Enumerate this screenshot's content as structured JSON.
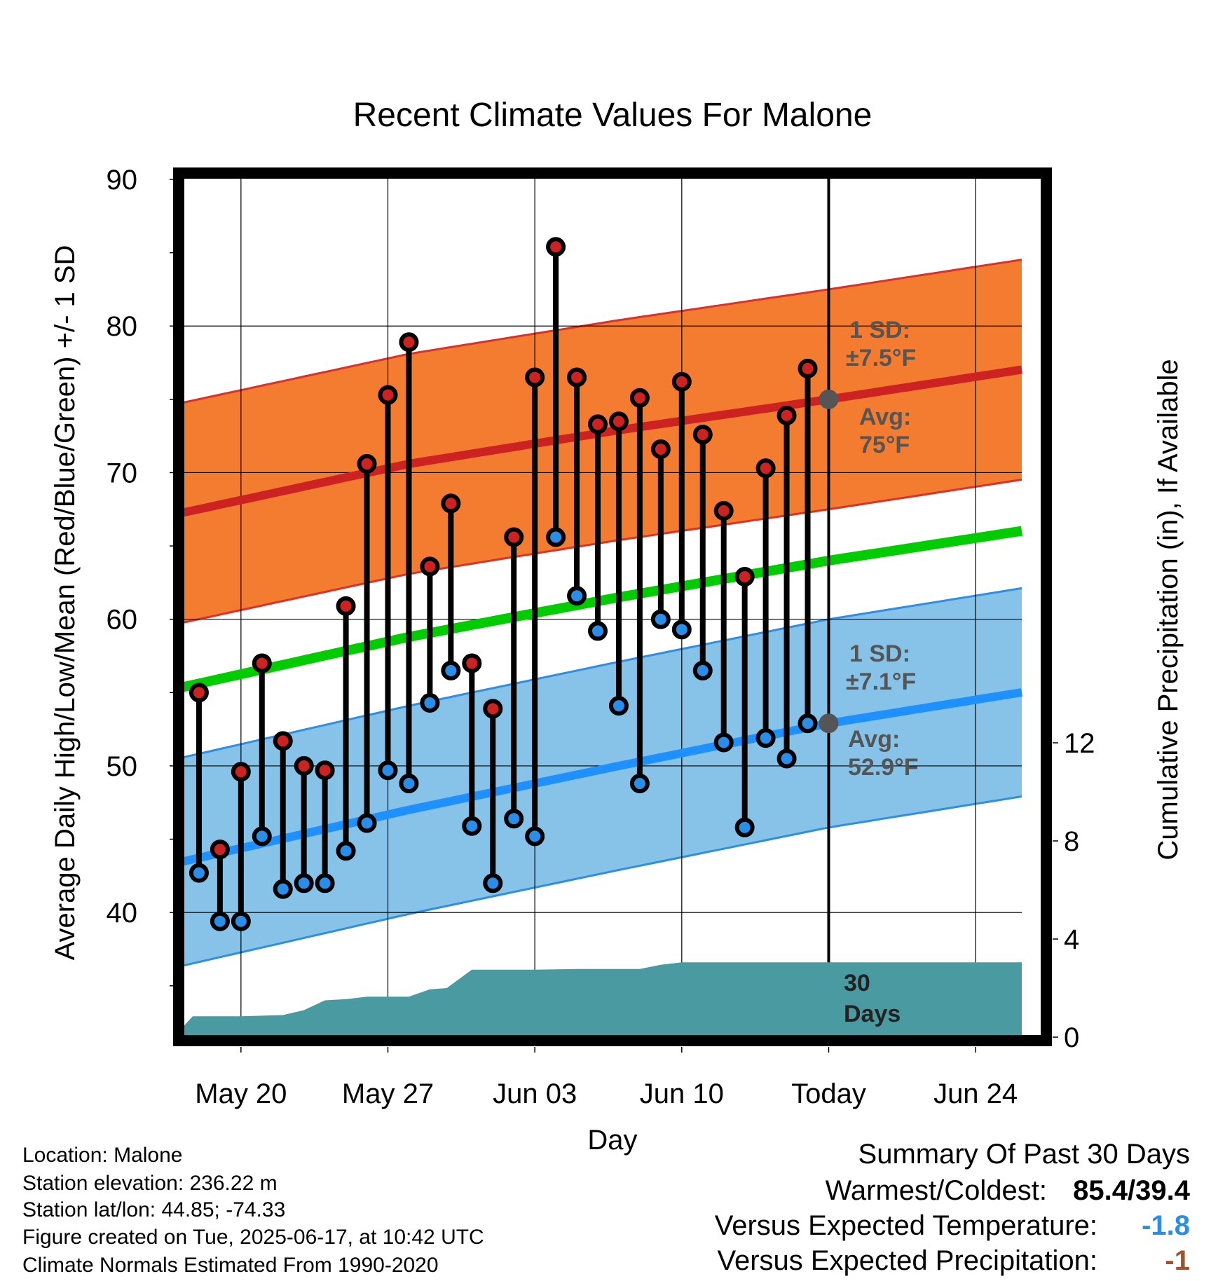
{
  "page_title": "Recent Climate Values For Malone",
  "footer": {
    "location": "Location: Malone",
    "elevation": "Station elevation: 236.22 m",
    "latlon": "Station lat/lon: 44.85; -74.33",
    "created": "Figure created on Tue, 2025-06-17, at 10:42 UTC",
    "normals": "Climate Normals Estimated From 1990-2020"
  },
  "summary": {
    "title": "Summary Of Past 30 Days",
    "warmest_label": "Warmest/Coldest:",
    "warmest_value": "85.4/39.4",
    "temp_label": "Versus Expected Temperature:",
    "temp_value": "-1.8",
    "temp_color": "#2a8ee8",
    "precip_label": "Versus Expected Precipitation:",
    "precip_value": "-1",
    "precip_color": "#a0522d"
  },
  "annotations": {
    "high_sd_line1": "1 SD:",
    "high_sd_line2": "±7.5°F",
    "high_avg_line1": "Avg:",
    "high_avg_line2": "75°F",
    "low_sd_line1": "1 SD:",
    "low_sd_line2": "±7.1°F",
    "low_avg_line1": "Avg:",
    "low_avg_line2": "52.9°F",
    "window_line1": "30",
    "window_line2": "Days"
  },
  "colors": {
    "high_band": "#f47c30",
    "high_edge": "#d8332a",
    "high_mean": "#cc2222",
    "low_band": "#87c3e8",
    "low_edge": "#2f8ee0",
    "low_mean": "#1e90ff",
    "mean_line": "#00cc00",
    "precip": "#4a9aa2",
    "high_dot": "#cc2222",
    "low_dot": "#2a8ee8",
    "today_dot": "#555555"
  },
  "chart_data": {
    "type": "line",
    "title": "Recent Climate Values For Malone",
    "xlabel": "Day",
    "ylabel": "Average Daily High/Low/Mean (Red/Blue/Green) +/- 1 SD",
    "y2label": "Cumulative Precipitation (in), If Available",
    "x_ticks": [
      "May 20",
      "May 27",
      "Jun 03",
      "Jun 10",
      "Today",
      "Jun 24"
    ],
    "x_tick_days": [
      -28,
      -21,
      -14,
      -7,
      0,
      7
    ],
    "xlim_days": [
      -31.2,
      9.6
    ],
    "ylim": [
      31.5,
      90
    ],
    "y_ticks": [
      40,
      50,
      60,
      70,
      80,
      90
    ],
    "y2lim": [
      0,
      14
    ],
    "y2_ticks": [
      0,
      4,
      8,
      12
    ],
    "days_from_today": [
      -30,
      -29,
      -28,
      -27,
      -26,
      -25,
      -24,
      -23,
      -22,
      -21,
      -20,
      -19,
      -18,
      -17,
      -16,
      -15,
      -14,
      -13,
      -12,
      -11,
      -10,
      -9,
      -8,
      -7,
      -6,
      -5,
      -4,
      -3,
      -2,
      -1
    ],
    "daily_high": [
      55.0,
      44.3,
      49.6,
      57.0,
      51.7,
      50.0,
      49.7,
      60.9,
      70.6,
      75.3,
      78.9,
      63.6,
      67.9,
      57.0,
      53.9,
      65.6,
      76.5,
      85.4,
      76.5,
      73.3,
      73.5,
      75.1,
      71.6,
      76.2,
      72.6,
      67.4,
      62.9,
      70.3,
      73.9,
      77.1
    ],
    "daily_low": [
      42.7,
      39.4,
      39.4,
      45.2,
      41.6,
      42.0,
      42.0,
      44.2,
      46.1,
      49.7,
      48.8,
      54.3,
      56.5,
      45.9,
      42.0,
      46.4,
      45.2,
      65.6,
      61.6,
      59.2,
      54.1,
      48.8,
      60.0,
      59.3,
      56.5,
      51.6,
      45.8,
      51.9,
      50.5,
      52.9
    ],
    "normal_high": {
      "days": [
        -31,
        -20,
        -10,
        0,
        10
      ],
      "values": [
        67.2,
        70.6,
        72.9,
        75.0,
        77.2
      ]
    },
    "normal_low": {
      "days": [
        -31,
        -20,
        -10,
        0,
        10
      ],
      "values": [
        43.4,
        47.0,
        50.0,
        52.9,
        55.2
      ]
    },
    "normal_mean": {
      "days": [
        -31,
        -20,
        -10,
        0,
        10
      ],
      "values": [
        55.3,
        58.8,
        61.5,
        64.0,
        66.2
      ]
    },
    "high_sd": 7.5,
    "low_sd": 7.1,
    "today_normal_high": 75,
    "today_normal_low": 52.9,
    "precip_cumulative": {
      "days": [
        -31,
        -30.3,
        -28,
        -26,
        -25,
        -24,
        -23,
        -22,
        -21,
        -20,
        -19,
        -18.2,
        -17,
        -14,
        -12,
        -9,
        -8,
        -7,
        9.6
      ],
      "values": [
        0.2,
        0.85,
        0.85,
        0.9,
        1.1,
        1.5,
        1.55,
        1.65,
        1.65,
        1.65,
        1.95,
        2.0,
        2.75,
        2.75,
        2.78,
        2.78,
        2.95,
        3.05,
        3.05
      ]
    },
    "grid": true,
    "legend": "none"
  }
}
